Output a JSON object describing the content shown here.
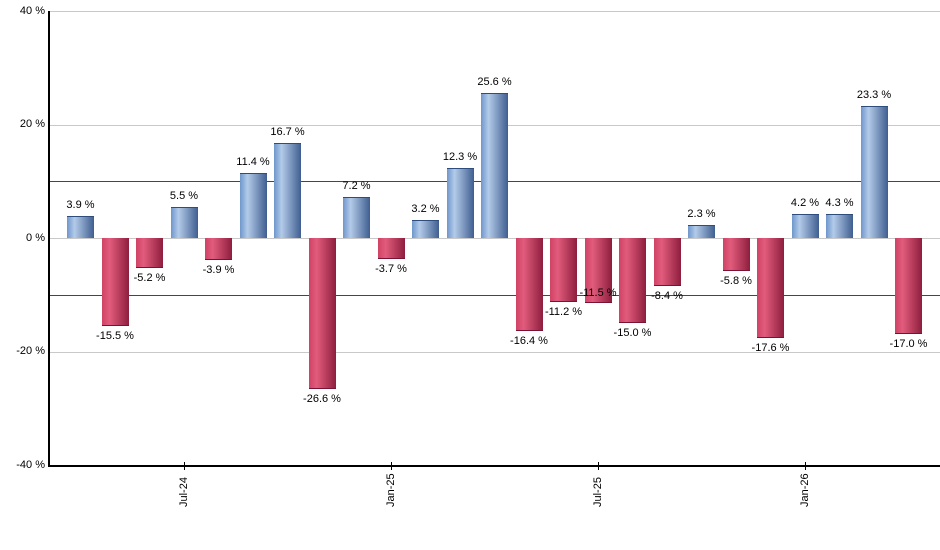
{
  "chart_data": {
    "type": "bar",
    "title": "",
    "xlabel": "",
    "ylabel": "",
    "ylim": [
      -40,
      40
    ],
    "grid": true,
    "legend": false,
    "background": "#ffffff",
    "y_ticks": [
      {
        "value": 40,
        "label": "40 %"
      },
      {
        "value": 20,
        "label": "20 %"
      },
      {
        "value": 0,
        "label": "0 %"
      },
      {
        "value": -20,
        "label": "-20 %"
      },
      {
        "value": -40,
        "label": "-40 %"
      }
    ],
    "x_tick_labels": [
      {
        "bar_index": 3,
        "label": "Jul-24"
      },
      {
        "bar_index": 9,
        "label": "Jan-25"
      },
      {
        "bar_index": 15,
        "label": "Jul-25"
      },
      {
        "bar_index": 21,
        "label": "Jan-26"
      }
    ],
    "reference_lines": [
      {
        "value": 10,
        "color": "#007700"
      },
      {
        "value": -10,
        "color": "#007700"
      }
    ],
    "values": [
      3.9,
      -15.5,
      -5.2,
      5.5,
      -3.9,
      11.4,
      16.7,
      -26.6,
      7.2,
      -3.7,
      3.2,
      12.3,
      25.6,
      -16.4,
      -11.2,
      -11.5,
      -15.0,
      -8.4,
      2.3,
      -5.8,
      -17.6,
      4.2,
      4.3,
      23.3,
      -17.0
    ],
    "value_labels": [
      "3.9 %",
      "-15.5 %",
      "-5.2 %",
      "5.5 %",
      "-3.9 %",
      "11.4 %",
      "16.7 %",
      "-26.6 %",
      "7.2 %",
      "-3.7 %",
      "3.2 %",
      "12.3 %",
      "25.6 %",
      "-16.4 %",
      "-11.2 %",
      "-11.5 %",
      "-15.0 %",
      "-8.4 %",
      "2.3 %",
      "-5.8 %",
      "-17.6 %",
      "4.2 %",
      "4.3 %",
      "23.3 %",
      "-17.0 %"
    ],
    "label_offsets": {
      "15": -20
    },
    "colors": {
      "positive_bar": [
        "#6e96cb",
        "#b3cbe9",
        "#3f5e90"
      ],
      "positive_cap": "#2e4c7c",
      "negative_bar": [
        "#cf4265",
        "#e25c7c",
        "#8e1e3e"
      ],
      "negative_cap": "#7c1233",
      "reference_line": "#007700",
      "gridline": "#c9c9c9",
      "axis": "#000000",
      "label_text": "#000000"
    }
  }
}
